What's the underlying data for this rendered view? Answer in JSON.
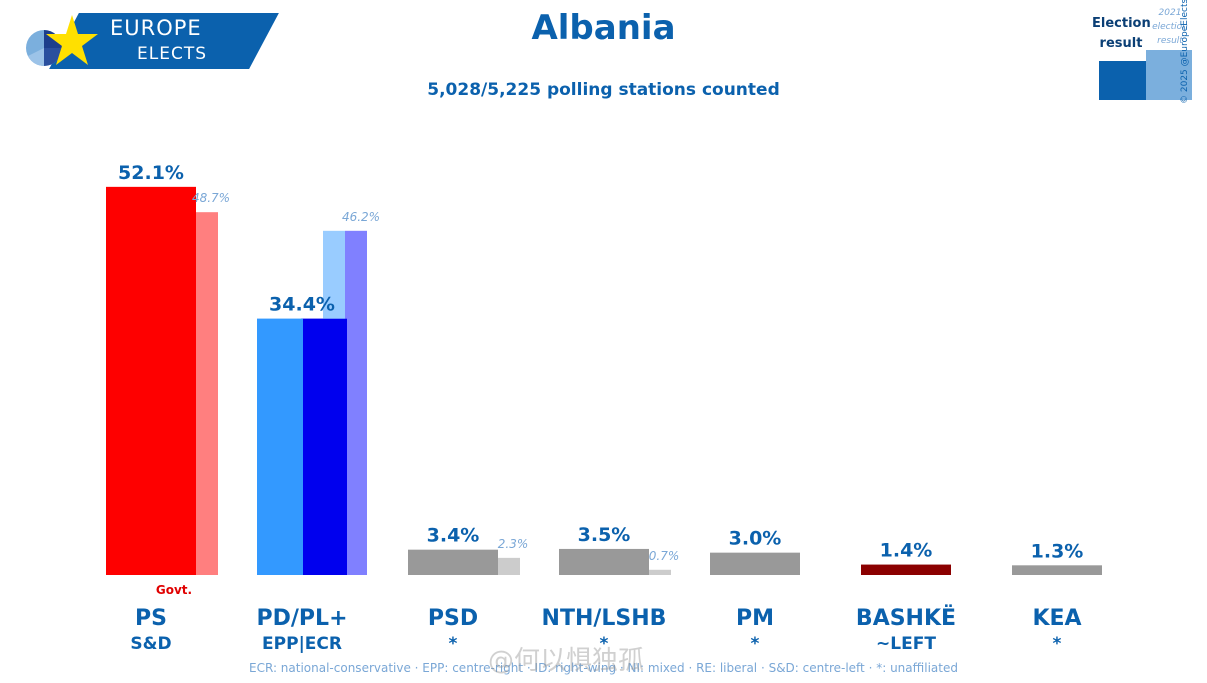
{
  "logo": {
    "line1": "EUROPE",
    "line2": "ELECTS"
  },
  "title": "Albania",
  "subtitle": "5,028/5,225 polling stations counted",
  "legend": {
    "current": "Election result",
    "previous": "2021 election result"
  },
  "copyright": "© 2025 @EuropeElects",
  "chart_data": {
    "type": "bar",
    "title": "Albania",
    "subtitle": "5,028/5,225 polling stations counted",
    "ylim": [
      0,
      55
    ],
    "grid": false,
    "legend_placement": "top-right",
    "series_names": [
      "Election result",
      "2021 election result"
    ],
    "parties": [
      {
        "name": "PS",
        "group": "S&D",
        "value": 52.1,
        "value_label": "52.1%",
        "previous": 48.7,
        "previous_label": "48.7%",
        "note": "Govt.",
        "color": "#fe0000",
        "prev_color": "#ff7f7f",
        "name_color": "#0b61ad"
      },
      {
        "name": "PD/PL+",
        "group": "EPP|ECR",
        "value": 34.4,
        "value_label": "34.4%",
        "components": [
          {
            "value": 34.4,
            "color": "#3399ff"
          },
          {
            "value": 34.4,
            "color": "#0000ee"
          }
        ],
        "previous_components": [
          {
            "value": 46.2,
            "color": "#99ccff"
          },
          {
            "value": 46.2,
            "color": "#8080ff"
          }
        ],
        "previous": 46.2,
        "previous_label": "46.2%",
        "name_color": "#0b61ad"
      },
      {
        "name": "PSD",
        "group": "*",
        "value": 3.4,
        "value_label": "3.4%",
        "previous": 2.3,
        "previous_label": "2.3%",
        "color": "#999999",
        "prev_color": "#cccccc",
        "name_color": "#0b61ad"
      },
      {
        "name": "NTH/LSHB",
        "group": "*",
        "value": 3.5,
        "value_label": "3.5%",
        "previous": 0.7,
        "previous_label": "0.7%",
        "color": "#999999",
        "prev_color": "#cccccc",
        "name_color": "#0b61ad"
      },
      {
        "name": "PM",
        "group": "*",
        "value": 3.0,
        "value_label": "3.0%",
        "color": "#999999",
        "name_color": "#0b61ad"
      },
      {
        "name": "BASHKË",
        "group": "~LEFT",
        "value": 1.4,
        "value_label": "1.4%",
        "color": "#8b0000",
        "name_color": "#0b61ad"
      },
      {
        "name": "KEA",
        "group": "*",
        "value": 1.3,
        "value_label": "1.3%",
        "color": "#999999",
        "name_color": "#0b61ad"
      }
    ]
  },
  "footnote": "ECR: national-conservative · EPP: centre-right · ID: right-wing · NI: mixed · RE: liberal · S&D: centre-left · *: unaffiliated",
  "watermark": "@何以惧独孤"
}
